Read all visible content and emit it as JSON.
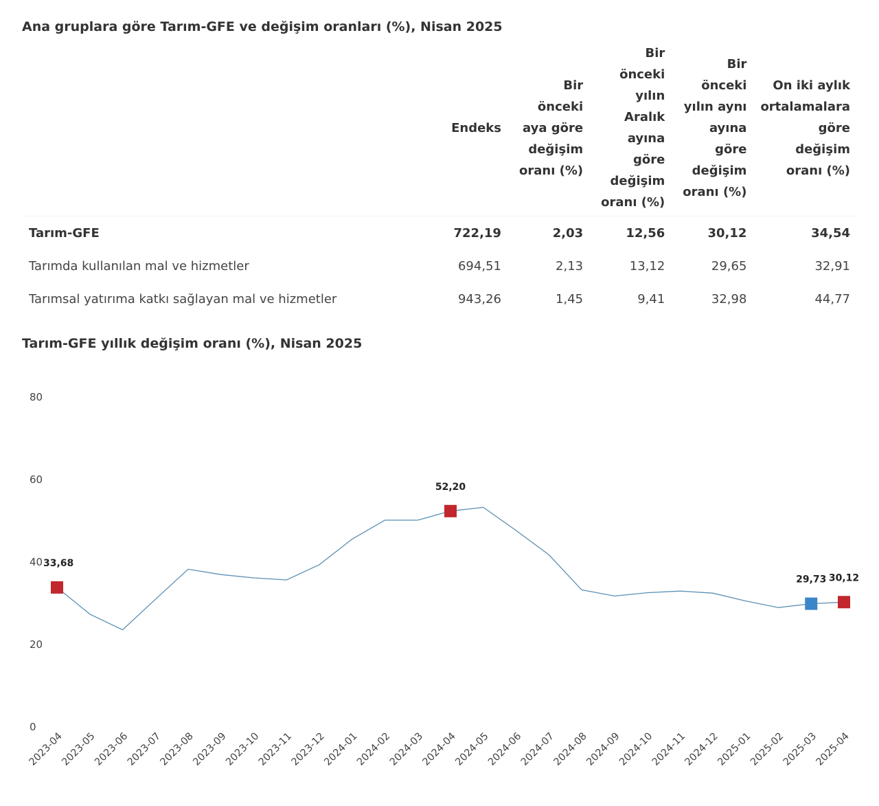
{
  "table_title": "Ana gruplara göre Tarım-GFE ve değişim oranları (%), Nisan 2025",
  "table": {
    "headers": [
      "",
      "Endeks",
      "Bir önceki aya göre değişim oranı (%)",
      "Bir önceki yılın Aralık ayına göre değişim oranı (%)",
      "Bir önceki yılın aynı ayına göre değişim oranı (%)",
      "On iki aylık ortalamalara göre değişim oranı (%)"
    ],
    "rows": [
      {
        "name": "Tarım-GFE",
        "endeks": "722,19",
        "aylik": "2,03",
        "aralik": "12,56",
        "yillik": "30,12",
        "ortalama": "34,54"
      },
      {
        "name": "Tarımda kullanılan mal ve hizmetler",
        "endeks": "694,51",
        "aylik": "2,13",
        "aralik": "13,12",
        "yillik": "29,65",
        "ortalama": "32,91"
      },
      {
        "name": "Tarımsal yatırıma katkı sağlayan mal ve hizmetler",
        "endeks": "943,26",
        "aylik": "1,45",
        "aralik": "9,41",
        "yillik": "32,98",
        "ortalama": "44,77"
      }
    ]
  },
  "chart_title": "Tarım-GFE yıllık değişim oranı (%), Nisan 2025",
  "chart_data": {
    "type": "line",
    "title": "Tarım-GFE yıllık değişim oranı (%), Nisan 2025",
    "xlabel": "",
    "ylabel": "",
    "ylim": [
      0,
      80
    ],
    "yticks": [
      "0",
      "20",
      "40",
      "60",
      "80"
    ],
    "ytick_values": [
      0,
      20,
      40,
      60,
      80
    ],
    "grid": false,
    "categories": [
      "2023-04",
      "2023-05",
      "2023-06",
      "2023-07",
      "2023-08",
      "2023-09",
      "2023-10",
      "2023-11",
      "2023-12",
      "2024-01",
      "2024-02",
      "2024-03",
      "2024-04",
      "2024-05",
      "2024-06",
      "2024-07",
      "2024-08",
      "2024-09",
      "2024-10",
      "2024-11",
      "2024-12",
      "2025-01",
      "2025-02",
      "2025-03",
      "2025-04"
    ],
    "series": [
      {
        "values": [
          33.68,
          27.2,
          23.4,
          30.8,
          38.1,
          36.8,
          36.0,
          35.5,
          39.2,
          45.4,
          50.0,
          50.0,
          52.2,
          53.1,
          47.5,
          41.6,
          33.1,
          31.6,
          32.4,
          32.8,
          32.3,
          30.4,
          28.8,
          29.73,
          30.12
        ]
      }
    ],
    "highlighted_points": [
      {
        "category": "2023-04",
        "value": 33.68,
        "label": "33,68",
        "color": "#c1272d"
      },
      {
        "category": "2024-04",
        "value": 52.2,
        "label": "52,20",
        "color": "#c1272d"
      },
      {
        "category": "2025-03",
        "value": 29.73,
        "label": "29,73",
        "color": "#3a86c8"
      },
      {
        "category": "2025-04",
        "value": 30.12,
        "label": "30,12",
        "color": "#c1272d"
      }
    ],
    "line_color": "#5b8fb4"
  }
}
